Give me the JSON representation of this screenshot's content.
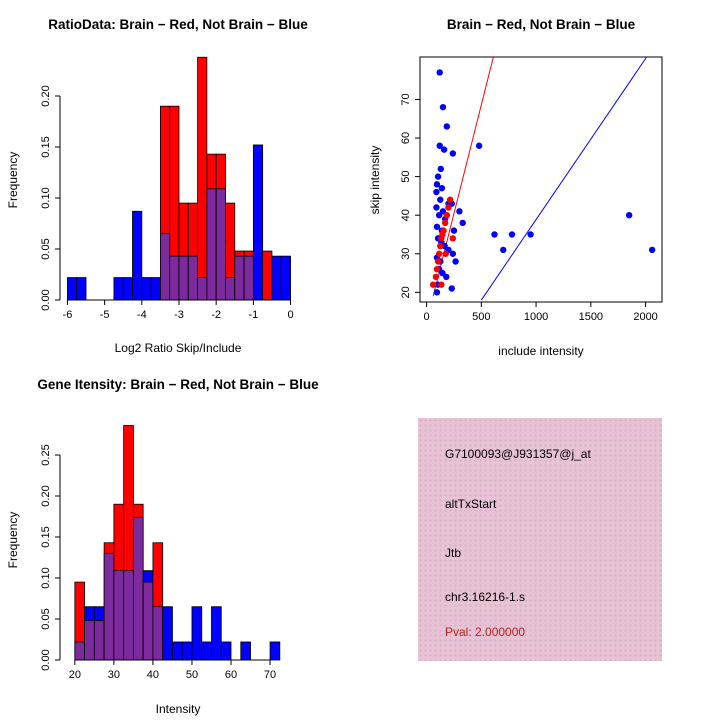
{
  "colors": {
    "red": "#FF0000",
    "blue": "#0000FF",
    "overlap": "#7D2A9E",
    "axis": "#000000",
    "pval_text": "#B22222",
    "info_box_bg": "#E7C4D5",
    "info_box_dot": "#DCAFC9"
  },
  "chart_data": [
    {
      "type": "bar",
      "id": "ratio-histogram",
      "title": "RatioData: Brain − Red, Not Brain − Blue",
      "xlabel": "Log2 Ratio Skip/Include",
      "ylabel": "Frequency",
      "xticks": [
        "-6",
        "-5",
        "-4",
        "-3",
        "-2",
        "-1",
        "0"
      ],
      "yticks": [
        "0.00",
        "0.05",
        "0.10",
        "0.15",
        "0.20"
      ],
      "xlim": [
        -6.2,
        0.1
      ],
      "ylim": [
        0,
        0.24
      ],
      "grid": false,
      "bins": {
        "start": -6,
        "width": 0.25
      },
      "series": [
        {
          "name": "Brain (red)",
          "color": "#FF0000",
          "values": [
            0,
            0,
            0,
            0,
            0,
            0,
            0,
            0,
            0,
            0,
            0.19,
            0.19,
            0.095,
            0.095,
            0.238,
            0.143,
            0.143,
            0.095,
            0.048,
            0.048,
            0,
            0.048,
            0,
            0
          ]
        },
        {
          "name": "Not Brain (blue)",
          "color": "#0000FF",
          "values": [
            0.022,
            0.022,
            0,
            0,
            0,
            0.022,
            0.022,
            0.087,
            0.022,
            0.022,
            0.065,
            0.043,
            0.043,
            0.043,
            0.022,
            0.109,
            0.109,
            0.022,
            0.043,
            0.043,
            0.152,
            0,
            0.043,
            0.043
          ]
        }
      ]
    },
    {
      "type": "scatter",
      "id": "intensity-scatter",
      "title": "Brain − Red, Not Brain − Blue",
      "xlabel": "include intensity",
      "ylabel": "skip intensity",
      "xticks": [
        "0",
        "500",
        "1000",
        "1500",
        "2000"
      ],
      "yticks": [
        "20",
        "30",
        "40",
        "50",
        "60",
        "70"
      ],
      "xlim": [
        -60,
        2150
      ],
      "ylim": [
        17.5,
        81
      ],
      "grid": false,
      "series": [
        {
          "name": "Not Brain (blue)",
          "color": "#0000FF",
          "points": [
            [
              120,
              77
            ],
            [
              150,
              68
            ],
            [
              185,
              63
            ],
            [
              120,
              58
            ],
            [
              160,
              57
            ],
            [
              240,
              56
            ],
            [
              480,
              58
            ],
            [
              130,
              52
            ],
            [
              105,
              50
            ],
            [
              95,
              48
            ],
            [
              140,
              47
            ],
            [
              90,
              46
            ],
            [
              125,
              44
            ],
            [
              200,
              43
            ],
            [
              230,
              43
            ],
            [
              90,
              42
            ],
            [
              150,
              41
            ],
            [
              300,
              41
            ],
            [
              115,
              40
            ],
            [
              170,
              39
            ],
            [
              330,
              38
            ],
            [
              95,
              37
            ],
            [
              140,
              36
            ],
            [
              250,
              36
            ],
            [
              105,
              34
            ],
            [
              135,
              33
            ],
            [
              165,
              32
            ],
            [
              200,
              31
            ],
            [
              240,
              30
            ],
            [
              95,
              29
            ],
            [
              125,
              28
            ],
            [
              265,
              28
            ],
            [
              115,
              26
            ],
            [
              145,
              25
            ],
            [
              180,
              24
            ],
            [
              105,
              22
            ],
            [
              230,
              21
            ],
            [
              95,
              20
            ],
            [
              620,
              35
            ],
            [
              700,
              31
            ],
            [
              780,
              35
            ],
            [
              950,
              35
            ],
            [
              1850,
              40
            ],
            [
              2060,
              31
            ]
          ]
        },
        {
          "name": "Brain (red)",
          "color": "#FF0000",
          "points": [
            [
              60,
              22
            ],
            [
              85,
              24
            ],
            [
              95,
              26
            ],
            [
              105,
              28
            ],
            [
              115,
              30
            ],
            [
              125,
              32
            ],
            [
              135,
              34
            ],
            [
              145,
              35
            ],
            [
              155,
              36
            ],
            [
              170,
              38
            ],
            [
              185,
              40
            ],
            [
              200,
              42
            ],
            [
              215,
              44
            ],
            [
              135,
              22
            ],
            [
              175,
              30
            ],
            [
              240,
              34
            ]
          ]
        }
      ],
      "fit_lines": [
        {
          "name": "brain-fit",
          "color": "#FF0000",
          "x1": 60,
          "y1": 19,
          "x2": 610,
          "y2": 81
        },
        {
          "name": "not-brain-fit",
          "color": "#0000FF",
          "x1": 500,
          "y1": 18,
          "x2": 2010,
          "y2": 81
        }
      ]
    },
    {
      "type": "bar",
      "id": "gene-histogram",
      "title": "Gene Itensity: Brain − Red, Not Brain − Blue",
      "xlabel": "Intensity",
      "ylabel": "Frequency",
      "xticks": [
        "20",
        "30",
        "40",
        "50",
        "60",
        "70"
      ],
      "yticks": [
        "0.00",
        "0.05",
        "0.10",
        "0.15",
        "0.20",
        "0.25"
      ],
      "xlim": [
        16.2,
        76.9
      ],
      "ylim": [
        0,
        0.29
      ],
      "grid": false,
      "bins": {
        "start": 20,
        "width": 2.5
      },
      "series": [
        {
          "name": "Brain (red)",
          "color": "#FF0000",
          "values": [
            0.095,
            0.048,
            0.048,
            0.143,
            0.19,
            0.286,
            0.19,
            0.095,
            0.143,
            0,
            0,
            0,
            0,
            0,
            0,
            0,
            0,
            0,
            0,
            0,
            0,
            0
          ]
        },
        {
          "name": "Not Brain (blue)",
          "color": "#0000FF",
          "values": [
            0.022,
            0.065,
            0.065,
            0.13,
            0.109,
            0.109,
            0.174,
            0.109,
            0.065,
            0.065,
            0.022,
            0.022,
            0.065,
            0.022,
            0.065,
            0.022,
            0,
            0.022,
            0,
            0,
            0.022,
            0
          ]
        }
      ]
    },
    {
      "type": "info",
      "id": "gene-info",
      "lines": [
        {
          "text": "G7100093@J931357@j_at",
          "color": "#000000"
        },
        {
          "text": "altTxStart",
          "color": "#000000"
        },
        {
          "text": "Jtb",
          "color": "#000000"
        },
        {
          "text": "chr3.16216-1.s",
          "color": "#000000"
        },
        {
          "text": "Pval: 2.000000",
          "color": "#B22222"
        }
      ]
    }
  ]
}
